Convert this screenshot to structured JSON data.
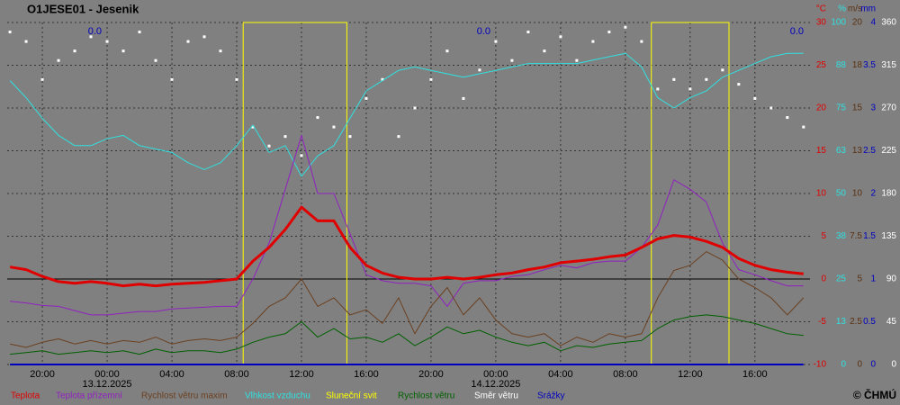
{
  "chart_data": {
    "type": "line",
    "title": "O1JESE01 - Jesenik",
    "copyright": "© ČHMÚ",
    "x": [
      -6,
      -5,
      -4,
      -3,
      -2,
      -1,
      0,
      1,
      2,
      3,
      4,
      5,
      6,
      7,
      8,
      9,
      10,
      11,
      12,
      13,
      14,
      15,
      16,
      17,
      18,
      19,
      20,
      21,
      22,
      23,
      24,
      25,
      26,
      27,
      28,
      29,
      30,
      31,
      32,
      33,
      34,
      35,
      36,
      37,
      38,
      39,
      40,
      41,
      42,
      43
    ],
    "xlim": [
      -6.17,
      43.4
    ],
    "xticks": [
      {
        "value": -4,
        "label": "20:00"
      },
      {
        "value": 0,
        "label": "00:00"
      },
      {
        "value": 4,
        "label": "04:00"
      },
      {
        "value": 8,
        "label": "08:00"
      },
      {
        "value": 12,
        "label": "12:00"
      },
      {
        "value": 16,
        "label": "16:00"
      },
      {
        "value": 20,
        "label": "20:00"
      },
      {
        "value": 24,
        "label": "00:00"
      },
      {
        "value": 28,
        "label": "04:00"
      },
      {
        "value": 32,
        "label": "08:00"
      },
      {
        "value": 36,
        "label": "12:00"
      },
      {
        "value": 40,
        "label": "16:00"
      }
    ],
    "date_labels": [
      {
        "value": 0,
        "label": "13.12.2025"
      },
      {
        "value": 24,
        "label": "14.12.2025"
      }
    ],
    "precip_totals": [
      "0.0",
      "0.0",
      "0.0"
    ],
    "grid": true,
    "axes": [
      {
        "label": "°C",
        "color": "#e00000",
        "ylim": [
          -10,
          30
        ],
        "yticks": [
          -10,
          -5,
          0,
          5,
          10,
          15,
          20,
          25,
          30
        ]
      },
      {
        "label": "%",
        "color": "#30e0e0",
        "ylim": [
          0,
          100
        ],
        "yticks": [
          0,
          {
            "value": 12.5,
            "label": "13"
          },
          25,
          {
            "value": 37.5,
            "label": "38"
          },
          50,
          {
            "value": 62.5,
            "label": "63"
          },
          75,
          {
            "value": 87.5,
            "label": "88"
          },
          100
        ]
      },
      {
        "label": "m/s",
        "color": "#5a3010",
        "ylim": [
          0,
          20
        ],
        "yticks": [
          0,
          2.5,
          5,
          7.5,
          10,
          {
            "value": 12.5,
            "label": "13"
          },
          15,
          {
            "value": 17.5,
            "label": "18"
          },
          20
        ]
      },
      {
        "label": "mm",
        "color": "#0000c0",
        "ylim": [
          0,
          4
        ],
        "yticks": [
          0,
          0.5,
          1,
          1.5,
          2,
          2.5,
          3,
          3.5,
          4
        ]
      },
      {
        "color": "#ffffff",
        "ylim": [
          0,
          360
        ],
        "yticks": [
          0,
          45,
          90,
          135,
          180,
          225,
          270,
          315,
          360
        ]
      }
    ],
    "series": [
      {
        "name": "Teplota",
        "color": "#e00000",
        "axis": 0,
        "width": 3,
        "values": [
          1.4,
          1.1,
          0.3,
          -0.3,
          -0.5,
          -0.3,
          -0.5,
          -0.8,
          -0.6,
          -0.8,
          -0.6,
          -0.5,
          -0.4,
          -0.2,
          0,
          2.1,
          3.7,
          5.8,
          8.4,
          6.8,
          6.8,
          3.7,
          1.6,
          0.7,
          0.2,
          0,
          0,
          0.2,
          0,
          0.2,
          0.5,
          0.7,
          1.1,
          1.4,
          1.9,
          2.1,
          2.3,
          2.6,
          2.8,
          3.7,
          4.7,
          5.1,
          4.9,
          4.4,
          3.7,
          2.4,
          1.6,
          1.1,
          0.8,
          0.6
        ]
      },
      {
        "name": "Teplota přízemní",
        "color": "#9020c0",
        "axis": 0,
        "width": 1,
        "values": [
          -2.6,
          -2.8,
          -3.1,
          -3.2,
          -3.7,
          -4.2,
          -4.2,
          -4.0,
          -3.8,
          -3.8,
          -3.5,
          -3.4,
          -3.3,
          -3.2,
          -3.2,
          0,
          4.2,
          10.5,
          16.8,
          10,
          10,
          5.3,
          0.5,
          -0.2,
          -0.5,
          -0.5,
          -0.8,
          -3.2,
          -0.5,
          -0.2,
          -0.2,
          0.3,
          0.5,
          1.1,
          1.6,
          1.3,
          1.9,
          2.1,
          2.1,
          3.7,
          6.3,
          11.6,
          10.5,
          9,
          4.2,
          1.1,
          0.5,
          -0.2,
          -0.8,
          -0.8
        ]
      },
      {
        "name": "Rychlost větru maxim",
        "color": "#6b4020",
        "axis": 2,
        "width": 1,
        "values": [
          1.2,
          1.0,
          1.3,
          1.5,
          1.2,
          1.4,
          1.2,
          1.4,
          1.3,
          1.6,
          1.2,
          1.4,
          1.5,
          1.4,
          1.6,
          2.4,
          3.4,
          3.9,
          5.0,
          3.4,
          3.9,
          2.9,
          3.2,
          2.4,
          3.9,
          1.8,
          3.4,
          4.5,
          2.9,
          3.9,
          2.6,
          1.8,
          1.6,
          1.8,
          1.1,
          1.6,
          1.3,
          1.8,
          1.6,
          1.8,
          3.9,
          5.5,
          5.8,
          6.6,
          6.1,
          5.0,
          4.5,
          3.9,
          2.9,
          3.9
        ]
      },
      {
        "name": "Vlhkost vzduchu",
        "color": "#30e0e0",
        "axis": 1,
        "width": 1,
        "values": [
          83,
          78,
          72,
          67,
          64,
          64,
          66,
          67,
          64,
          63,
          62,
          59,
          57,
          59,
          64,
          70,
          62,
          64,
          55,
          61,
          64,
          72,
          80,
          83,
          86,
          87,
          86,
          85,
          84,
          85,
          86,
          87,
          88,
          88,
          88,
          88,
          89,
          90,
          91,
          87,
          78,
          75,
          78,
          80,
          84,
          86,
          88,
          90,
          91,
          91
        ]
      },
      {
        "name": "Sluneční svit",
        "color": "#ffff00",
        "axis": 1,
        "width": 1,
        "x": [
          -6,
          8.4,
          8.4,
          14.8,
          14.8,
          33.6,
          33.6,
          38.4,
          38.4,
          43
        ],
        "values": [
          0,
          0,
          100,
          100,
          0,
          0,
          100,
          100,
          0,
          0
        ]
      },
      {
        "name": "Rychlost větru",
        "color": "#006000",
        "axis": 2,
        "width": 1,
        "values": [
          0.6,
          0.7,
          0.8,
          0.6,
          0.7,
          0.8,
          0.7,
          0.8,
          0.6,
          0.9,
          0.7,
          0.8,
          0.8,
          0.7,
          0.9,
          1.3,
          1.6,
          1.8,
          2.5,
          1.6,
          2.1,
          1.5,
          1.6,
          1.3,
          1.8,
          1.1,
          1.6,
          2.2,
          1.8,
          2.0,
          1.6,
          1.3,
          1.1,
          1.3,
          0.8,
          1.1,
          1.0,
          1.2,
          1.3,
          1.4,
          2.1,
          2.6,
          2.8,
          2.9,
          2.8,
          2.6,
          2.4,
          2.1,
          1.8,
          1.7
        ]
      },
      {
        "name": "Směr větru",
        "color": "#ffffff",
        "axis": 4,
        "dots": true,
        "values": [
          350,
          340,
          300,
          320,
          330,
          345,
          340,
          330,
          350,
          320,
          300,
          340,
          345,
          330,
          300,
          250,
          230,
          240,
          220,
          260,
          250,
          240,
          280,
          300,
          240,
          270,
          300,
          330,
          280,
          310,
          340,
          320,
          350,
          330,
          345,
          320,
          340,
          350,
          355,
          340,
          290,
          300,
          290,
          300,
          310,
          295,
          280,
          270,
          260,
          250
        ]
      },
      {
        "name": "Srážky",
        "color": "#0000c0",
        "axis": 3,
        "width": 2,
        "values": [
          0,
          0,
          0,
          0,
          0,
          0,
          0,
          0,
          0,
          0,
          0,
          0,
          0,
          0,
          0,
          0,
          0,
          0,
          0,
          0,
          0,
          0,
          0,
          0,
          0,
          0,
          0,
          0,
          0,
          0,
          0,
          0,
          0,
          0,
          0,
          0,
          0,
          0,
          0,
          0,
          0,
          0,
          0,
          0,
          0,
          0,
          0,
          0,
          0,
          0
        ]
      }
    ]
  }
}
